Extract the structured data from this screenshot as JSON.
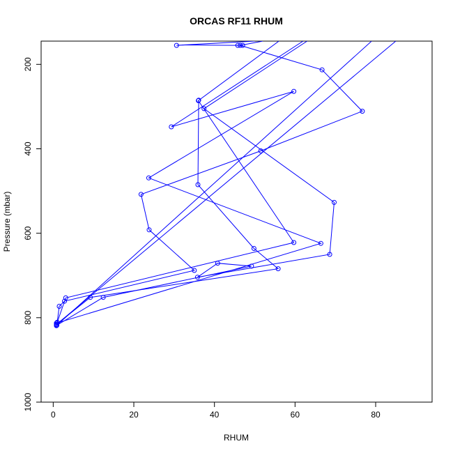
{
  "chart_data": {
    "type": "line",
    "title": "ORCAS RF11 RHUM",
    "xlabel": "RHUM",
    "ylabel": "Pressure (mbar)",
    "xlim": [
      -3,
      94
    ],
    "ylim": [
      1000,
      145
    ],
    "y_reversed": true,
    "x_ticks": [
      0,
      20,
      40,
      60,
      80
    ],
    "y_ticks": [
      200,
      400,
      600,
      800,
      1000
    ],
    "series": [
      {
        "color": "#0000ff",
        "marker": "open-circle",
        "points": [
          {
            "x": 0.8,
            "y": 819,
            "m": true
          },
          {
            "x": 0.8,
            "y": 816,
            "m": true
          },
          {
            "x": 0.8,
            "y": 813,
            "m": true
          },
          {
            "x": 1.0,
            "y": 811,
            "m": true
          },
          {
            "x": 1.5,
            "y": 773,
            "m": true
          },
          {
            "x": 2.8,
            "y": 761,
            "m": true
          },
          {
            "x": 35.0,
            "y": 688,
            "m": true
          },
          {
            "x": 23.8,
            "y": 592,
            "m": true
          },
          {
            "x": 21.8,
            "y": 508,
            "m": true
          },
          {
            "x": 51.5,
            "y": 405,
            "m": true
          },
          {
            "x": 76.7,
            "y": 311,
            "m": true
          },
          {
            "x": 66.7,
            "y": 213,
            "m": true
          },
          {
            "x": 46.4,
            "y": 155,
            "m": true
          },
          {
            "x": 52.0,
            "y": 145,
            "m": false
          }
        ]
      },
      {
        "color": "#0000ff",
        "marker": "open-circle",
        "points": [
          {
            "x": 1.0,
            "y": 811,
            "m": true
          },
          {
            "x": 3.1,
            "y": 753,
            "m": true
          },
          {
            "x": 59.7,
            "y": 622,
            "m": true
          },
          {
            "x": 36.0,
            "y": 286,
            "m": true
          },
          {
            "x": 56.0,
            "y": 145,
            "m": false
          }
        ]
      },
      {
        "color": "#0000ff",
        "marker": "open-circle",
        "points": [
          {
            "x": 0.8,
            "y": 816,
            "m": true
          },
          {
            "x": 9.2,
            "y": 752,
            "m": true
          },
          {
            "x": 55.8,
            "y": 684,
            "m": true
          },
          {
            "x": 49.8,
            "y": 636,
            "m": true
          },
          {
            "x": 35.9,
            "y": 485,
            "m": true
          },
          {
            "x": 36.1,
            "y": 285,
            "m": true
          }
        ]
      },
      {
        "color": "#0000ff",
        "marker": "open-circle",
        "points": [
          {
            "x": 0.9,
            "y": 818,
            "m": true
          },
          {
            "x": 12.4,
            "y": 752,
            "m": true
          },
          {
            "x": 49.2,
            "y": 678,
            "m": true
          },
          {
            "x": 40.8,
            "y": 671,
            "m": true
          },
          {
            "x": 35.8,
            "y": 704,
            "m": true
          },
          {
            "x": 68.6,
            "y": 650,
            "m": true
          },
          {
            "x": 69.7,
            "y": 527,
            "m": true
          },
          {
            "x": 37.4,
            "y": 305,
            "m": true
          },
          {
            "x": 63.0,
            "y": 145,
            "m": false
          }
        ]
      },
      {
        "color": "#0000ff",
        "marker": "open-circle",
        "points": [
          {
            "x": 0.8,
            "y": 813,
            "m": true
          },
          {
            "x": 66.4,
            "y": 624,
            "m": true
          },
          {
            "x": 23.7,
            "y": 469,
            "m": true
          },
          {
            "x": 59.7,
            "y": 264,
            "m": true
          },
          {
            "x": 29.3,
            "y": 348,
            "m": true
          },
          {
            "x": 62.0,
            "y": 145,
            "m": false
          }
        ]
      },
      {
        "color": "#0000ff",
        "marker": "open-circle",
        "points": [
          {
            "x": 0.8,
            "y": 819,
            "m": true
          },
          {
            "x": 79.0,
            "y": 145,
            "m": false
          }
        ]
      },
      {
        "color": "#0000ff",
        "marker": "open-circle",
        "points": [
          {
            "x": 85.0,
            "y": 145,
            "m": false
          },
          {
            "x": 0.8,
            "y": 816,
            "m": true
          }
        ]
      },
      {
        "color": "#0000ff",
        "marker": "open-circle",
        "points": [
          {
            "x": 30.6,
            "y": 155,
            "m": true
          },
          {
            "x": 50.0,
            "y": 145,
            "m": false
          }
        ]
      },
      {
        "color": "#0000ff",
        "marker": "open-circle",
        "points": [
          {
            "x": 32.0,
            "y": 154,
            "m": false
          },
          {
            "x": 45.8,
            "y": 155,
            "m": true
          },
          {
            "x": 47.0,
            "y": 155,
            "m": true
          }
        ]
      }
    ]
  }
}
